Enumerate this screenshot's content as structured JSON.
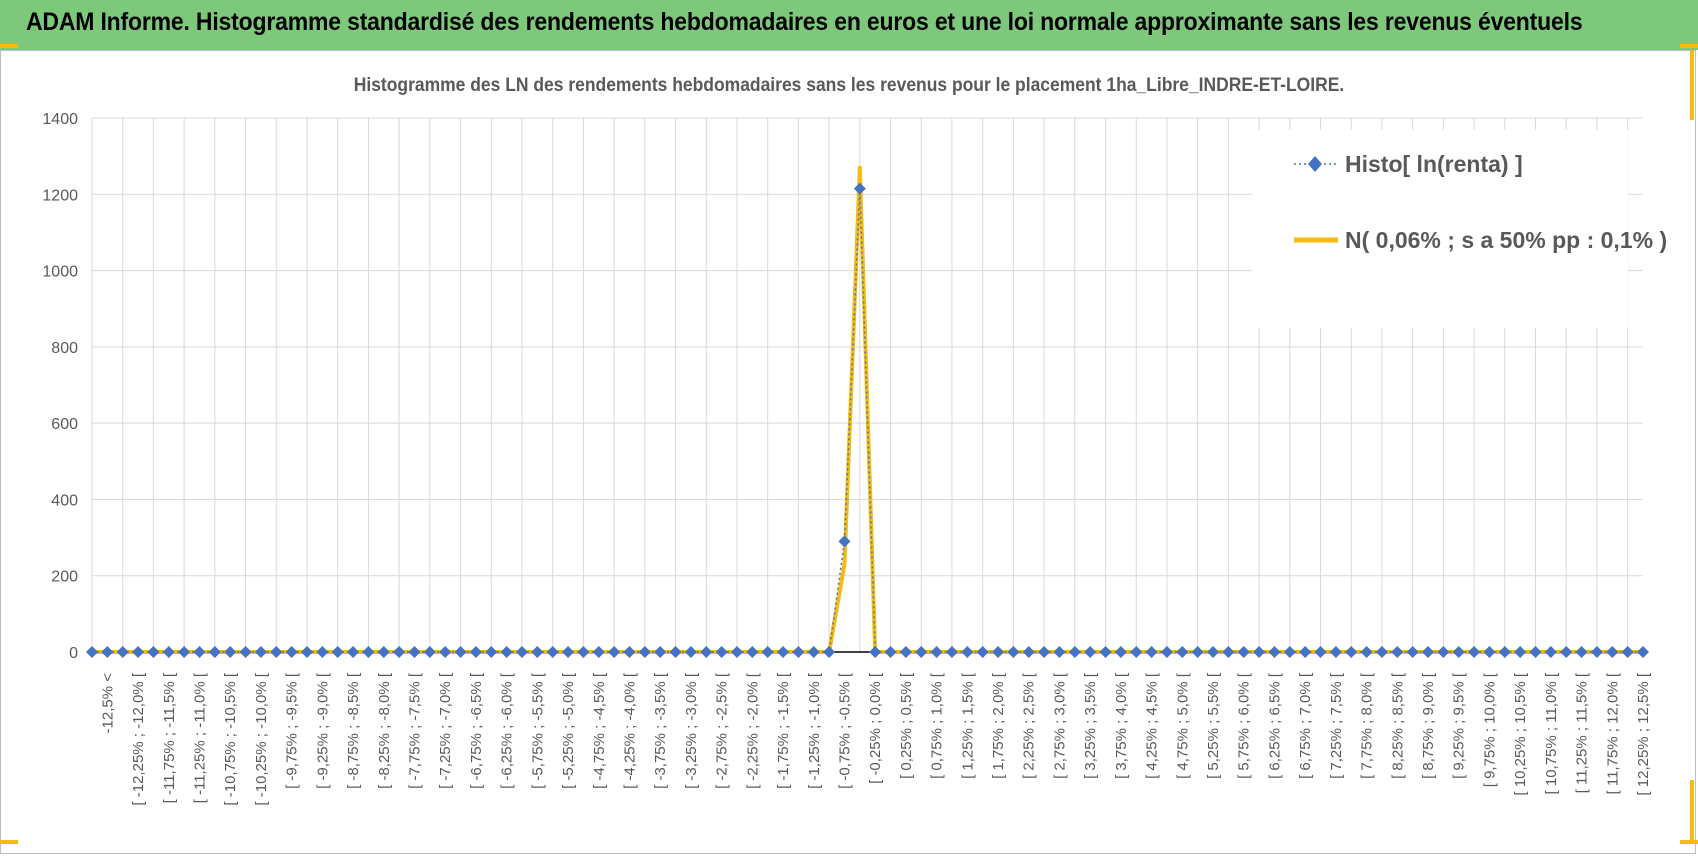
{
  "banner": {
    "title": "ADAM Informe. Histogramme standardisé des rendements hebdomadaires en euros et une loi normale approximante sans les revenus éventuels"
  },
  "colors": {
    "banner_bg": "#7ec87c",
    "series_histo": "#4472c4",
    "series_normal": "#f4bb12",
    "grid": "#d9d9d9",
    "text": "#595959"
  },
  "chart_data": {
    "type": "line",
    "title": "Histogramme des LN des rendements hebdomadaires sans les revenus pour le placement 1ha_Libre_INDRE-ET-LOIRE.",
    "xlabel": "",
    "ylabel": "",
    "ylim": [
      0,
      1400
    ],
    "yticks": [
      "0",
      "200",
      "400",
      "600",
      "800",
      "1000",
      "1200",
      "1400"
    ],
    "grid": true,
    "legend_position": "top-right",
    "categories": [
      "-12,5% <",
      "[ -12,25% ; -12,0% [",
      "[ -11,75% ; -11,5% [",
      "[ -11,25% ; -11,0% [",
      "[ -10,75% ; -10,5% [",
      "[ -10,25% ; -10,0% [",
      "[ -9,75% ; -9,5% [",
      "[ -9,25% ; -9,0% [",
      "[ -8,75% ; -8,5% [",
      "[ -8,25% ; -8,0% [",
      "[ -7,75% ; -7,5% [",
      "[ -7,25% ; -7,0% [",
      "[ -6,75% ; -6,5% [",
      "[ -6,25% ; -6,0% [",
      "[ -5,75% ; -5,5% [",
      "[ -5,25% ; -5,0% [",
      "[ -4,75% ; -4,5% [",
      "[ -4,25% ; -4,0% [",
      "[ -3,75% ; -3,5% [",
      "[ -3,25% ; -3,0% [",
      "[ -2,75% ; -2,5% [",
      "[ -2,25% ; -2,0% [",
      "[ -1,75% ; -1,5% [",
      "[ -1,25% ; -1,0% [",
      "[ -0,75% ; -0,5% [",
      "[ -0,25% ; 0,0% [",
      "[ 0,25% ; 0,5% [",
      "[ 0,75% ; 1,0% [",
      "[ 1,25% ; 1,5% [",
      "[ 1,75% ; 2,0% [",
      "[ 2,25% ; 2,5% [",
      "[ 2,75% ; 3,0% [",
      "[ 3,25% ; 3,5% [",
      "[ 3,75% ; 4,0% [",
      "[ 4,25% ; 4,5% [",
      "[ 4,75% ; 5,0% [",
      "[ 5,25% ; 5,5% [",
      "[ 5,75% ; 6,0% [",
      "[ 6,25% ; 6,5% [",
      "[ 6,75% ; 7,0% [",
      "[ 7,25% ; 7,5% [",
      "[ 7,75% ; 8,0% [",
      "[ 8,25% ; 8,5% [",
      "[ 8,75% ; 9,0% [",
      "[ 9,25% ; 9,5% [",
      "[ 9,75% ; 10,0% [",
      "[ 10,25% ; 10,5% [",
      "[ 10,75% ; 11,0% [",
      "[ 11,25% ; 11,5% [",
      "[ 11,75% ; 12,0% [",
      "[ 12,25% ; 12,5% ["
    ],
    "x": [
      -12.5,
      -12.25,
      -12.0,
      -11.75,
      -11.5,
      -11.25,
      -11.0,
      -10.75,
      -10.5,
      -10.25,
      -10.0,
      -9.75,
      -9.5,
      -9.25,
      -9.0,
      -8.75,
      -8.5,
      -8.25,
      -8.0,
      -7.75,
      -7.5,
      -7.25,
      -7.0,
      -6.75,
      -6.5,
      -6.25,
      -6.0,
      -5.75,
      -5.5,
      -5.25,
      -5.0,
      -4.75,
      -4.5,
      -4.25,
      -4.0,
      -3.75,
      -3.5,
      -3.25,
      -3.0,
      -2.75,
      -2.5,
      -2.25,
      -2.0,
      -1.75,
      -1.5,
      -1.25,
      -1.0,
      -0.75,
      -0.5,
      -0.25,
      0.0,
      0.25,
      0.5,
      0.75,
      1.0,
      1.25,
      1.5,
      1.75,
      2.0,
      2.25,
      2.5,
      2.75,
      3.0,
      3.25,
      3.5,
      3.75,
      4.0,
      4.25,
      4.5,
      4.75,
      5.0,
      5.25,
      5.5,
      5.75,
      6.0,
      6.25,
      6.5,
      6.75,
      7.0,
      7.25,
      7.5,
      7.75,
      8.0,
      8.25,
      8.5,
      8.75,
      9.0,
      9.25,
      9.5,
      9.75,
      10.0,
      10.25,
      10.5,
      10.75,
      11.0,
      11.25,
      11.5,
      11.75,
      12.0,
      12.25,
      12.5,
      12.75
    ],
    "series": [
      {
        "name": "Histo[ ln(renta) ]",
        "style": "dotted line with diamond markers",
        "values": [
          0,
          0,
          0,
          0,
          0,
          0,
          0,
          0,
          0,
          0,
          0,
          0,
          0,
          0,
          0,
          0,
          0,
          0,
          0,
          0,
          0,
          0,
          0,
          0,
          0,
          0,
          0,
          0,
          0,
          0,
          0,
          0,
          0,
          0,
          0,
          0,
          0,
          0,
          0,
          0,
          0,
          0,
          0,
          0,
          0,
          0,
          0,
          0,
          0,
          290,
          1215,
          0,
          0,
          0,
          0,
          0,
          0,
          0,
          0,
          0,
          0,
          0,
          0,
          0,
          0,
          0,
          0,
          0,
          0,
          0,
          0,
          0,
          0,
          0,
          0,
          0,
          0,
          0,
          0,
          0,
          0,
          0,
          0,
          0,
          0,
          0,
          0,
          0,
          0,
          0,
          0,
          0,
          0,
          0,
          0,
          0,
          0,
          0,
          0,
          0,
          0,
          0
        ]
      },
      {
        "name": "N( 0,06% ; s a 50% pp : 0,1% )",
        "style": "solid thick line",
        "values": [
          0,
          0,
          0,
          0,
          0,
          0,
          0,
          0,
          0,
          0,
          0,
          0,
          0,
          0,
          0,
          0,
          0,
          0,
          0,
          0,
          0,
          0,
          0,
          0,
          0,
          0,
          0,
          0,
          0,
          0,
          0,
          0,
          0,
          0,
          0,
          0,
          0,
          0,
          0,
          0,
          0,
          0,
          0,
          0,
          0,
          0,
          0,
          0,
          0,
          230,
          1270,
          0,
          0,
          0,
          0,
          0,
          0,
          0,
          0,
          0,
          0,
          0,
          0,
          0,
          0,
          0,
          0,
          0,
          0,
          0,
          0,
          0,
          0,
          0,
          0,
          0,
          0,
          0,
          0,
          0,
          0,
          0,
          0,
          0,
          0,
          0,
          0,
          0,
          0,
          0,
          0,
          0,
          0,
          0,
          0,
          0,
          0,
          0,
          0,
          0,
          0,
          0
        ]
      }
    ]
  }
}
